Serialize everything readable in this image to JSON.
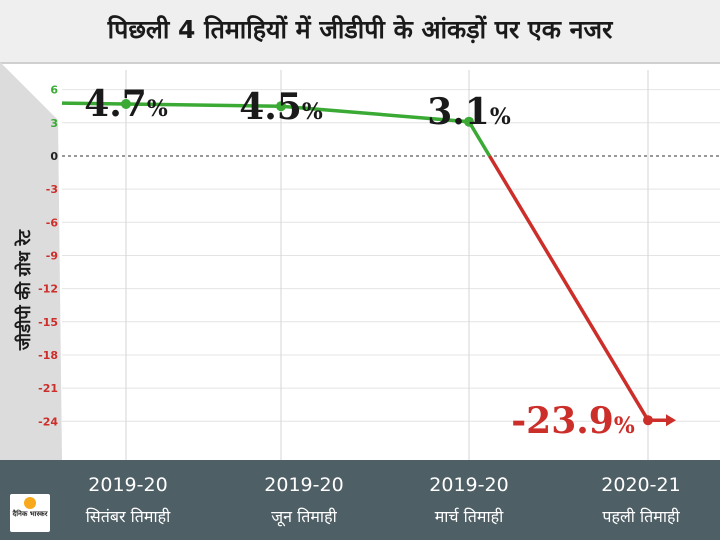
{
  "title": "पिछली 4 तिमाहियों में जीडीपी के आंकड़ों पर एक नजर",
  "logo_text": "दैनिक भास्कर",
  "chart_data": {
    "type": "line",
    "ylabel": "जीडीपी की ग्रोथ रेट",
    "yticks": [
      6,
      3,
      0,
      -3,
      -6,
      -9,
      -12,
      -15,
      -18,
      -21,
      -24
    ],
    "ylim": [
      -27.5,
      8.5
    ],
    "categories": [
      {
        "year": "2019-20",
        "quarter": "सितंबर तिमाही"
      },
      {
        "year": "2019-20",
        "quarter": "जून तिमाही"
      },
      {
        "year": "2019-20",
        "quarter": "मार्च तिमाही"
      },
      {
        "year": "2020-21",
        "quarter": "पहली तिमाही"
      }
    ],
    "values": [
      4.7,
      4.5,
      3.1,
      -23.9
    ],
    "value_labels": [
      "4.7",
      "4.5",
      "3.1",
      "-23.9"
    ],
    "unit": "%",
    "grid": true,
    "zero_line": "dashed",
    "colors": {
      "positive": "#3aaa35",
      "negative": "#cc2e2a",
      "axis_band": "#dcdcdc",
      "category_band": "#4f5f66"
    }
  }
}
